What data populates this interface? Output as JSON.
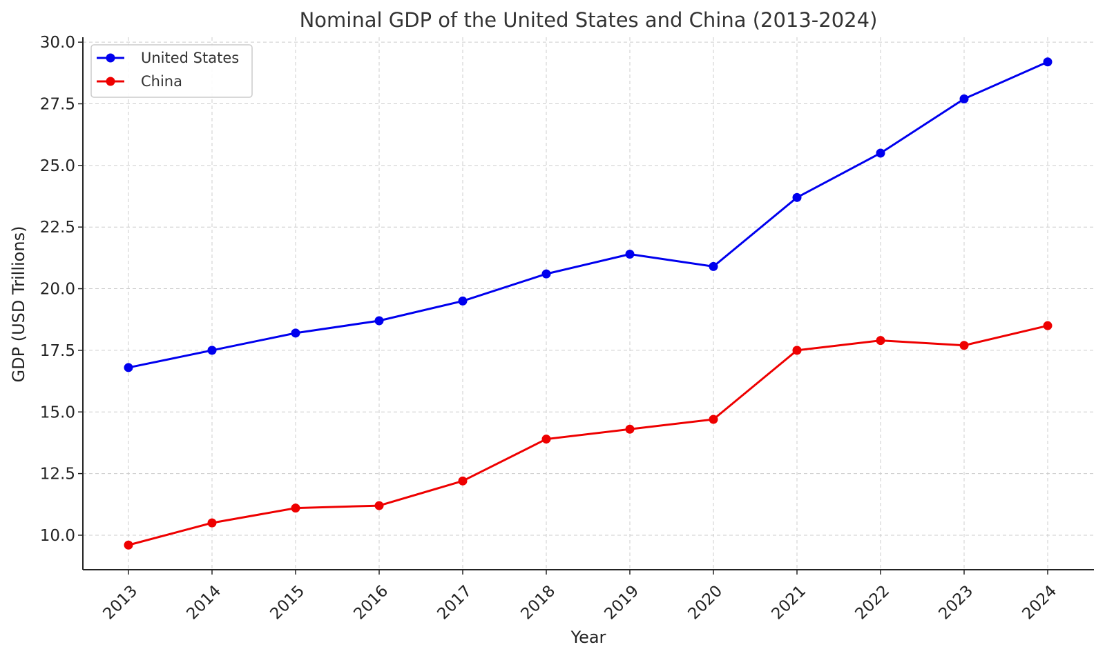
{
  "chart_data": {
    "type": "line",
    "title": "Nominal GDP of the United States and China (2013-2024)",
    "xlabel": "Year",
    "ylabel": "GDP (USD Trillions)",
    "x": [
      "2013",
      "2014",
      "2015",
      "2016",
      "2017",
      "2018",
      "2019",
      "2020",
      "2021",
      "2022",
      "2023",
      "2024"
    ],
    "ylim": [
      8.6,
      30.2
    ],
    "yticks": [
      "10.0",
      "12.5",
      "15.0",
      "17.5",
      "20.0",
      "22.5",
      "25.0",
      "27.5",
      "30.0"
    ],
    "grid": true,
    "legend_position": "top-left",
    "series": [
      {
        "name": "United States",
        "color": "#0000ee",
        "marker": "circle",
        "values": [
          16.8,
          17.5,
          18.2,
          18.7,
          19.5,
          20.6,
          21.4,
          20.9,
          23.7,
          25.5,
          27.7,
          29.2
        ]
      },
      {
        "name": "China",
        "color": "#ee0000",
        "marker": "circle",
        "values": [
          9.6,
          10.5,
          11.1,
          11.2,
          12.2,
          13.9,
          14.3,
          14.7,
          17.5,
          17.9,
          17.7,
          18.5
        ]
      }
    ]
  }
}
